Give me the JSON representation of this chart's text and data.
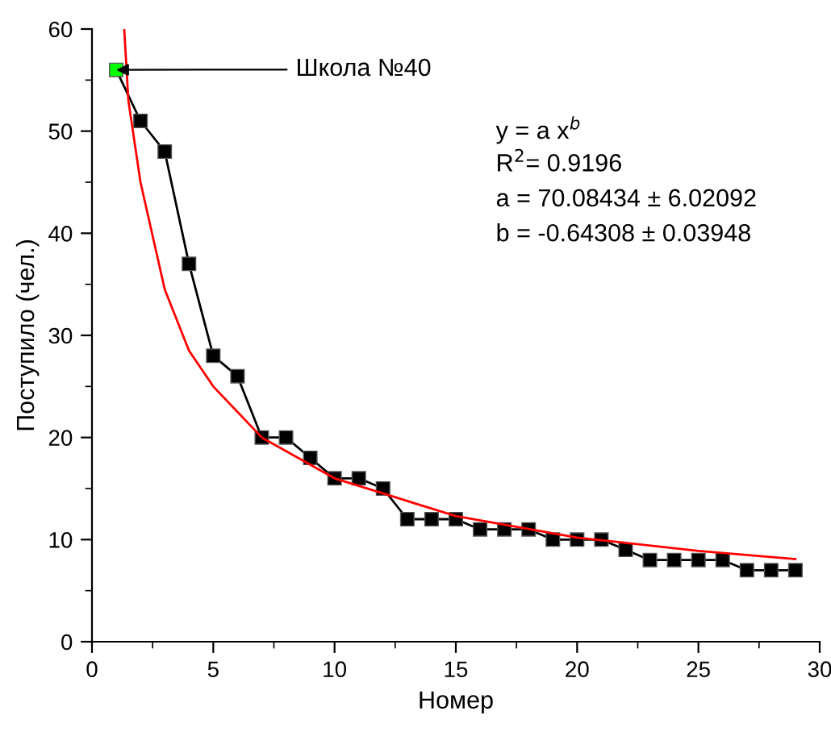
{
  "chart_data": {
    "type": "line",
    "xlabel": "Номер",
    "ylabel": "Поступило (чел.)",
    "xlim": [
      0,
      30
    ],
    "xticks": [
      0,
      5,
      10,
      15,
      20,
      25,
      30
    ],
    "ylim": [
      0,
      60
    ],
    "yticks": [
      0,
      10,
      20,
      30,
      40,
      50,
      60
    ],
    "grid": false,
    "legend": false,
    "series": [
      {
        "color": "#000000",
        "marker": "square",
        "line_style": "solid",
        "x": [
          1,
          2,
          3,
          4,
          5,
          6,
          7,
          8,
          9,
          10,
          11,
          12,
          13,
          14,
          15,
          16,
          17,
          18,
          19,
          20,
          21,
          22,
          23,
          24,
          25,
          26,
          27,
          28,
          29
        ],
        "values": [
          56,
          51,
          48,
          37,
          28,
          26,
          20,
          20,
          18,
          16,
          16,
          15,
          12,
          12,
          12,
          11,
          11,
          11,
          10,
          10,
          10,
          9,
          8,
          8,
          8,
          8,
          7,
          7,
          7
        ],
        "colors": [
          "#00ff00",
          "#000000",
          "#000000",
          "#000000",
          "#000000",
          "#000000",
          "#000000",
          "#000000",
          "#000000",
          "#000000",
          "#000000",
          "#000000",
          "#000000",
          "#000000",
          "#000000",
          "#000000",
          "#000000",
          "#000000",
          "#000000",
          "#000000",
          "#000000",
          "#000000",
          "#000000",
          "#000000",
          "#000000",
          "#000000",
          "#000000",
          "#000000",
          "#000000"
        ]
      },
      {
        "type": "line",
        "color": "#ff0000",
        "marker": "none",
        "line_style": "solid",
        "x": [
          1.33,
          1.5,
          2,
          3,
          4,
          5,
          7,
          10,
          15,
          20,
          25,
          29
        ],
        "values": [
          60,
          53,
          45,
          34.5,
          28.5,
          25,
          20,
          16,
          12.3,
          10.2,
          8.9,
          8.1
        ]
      }
    ],
    "annotations": [
      {
        "text": "Школа №40",
        "x": 1,
        "y": 56
      },
      "y = a x$^{b}$",
      "R$^{2}$= 0.9196",
      "a = 70.08434 ± 6.02092",
      "b = -0.64308 ± 0.03948"
    ]
  }
}
